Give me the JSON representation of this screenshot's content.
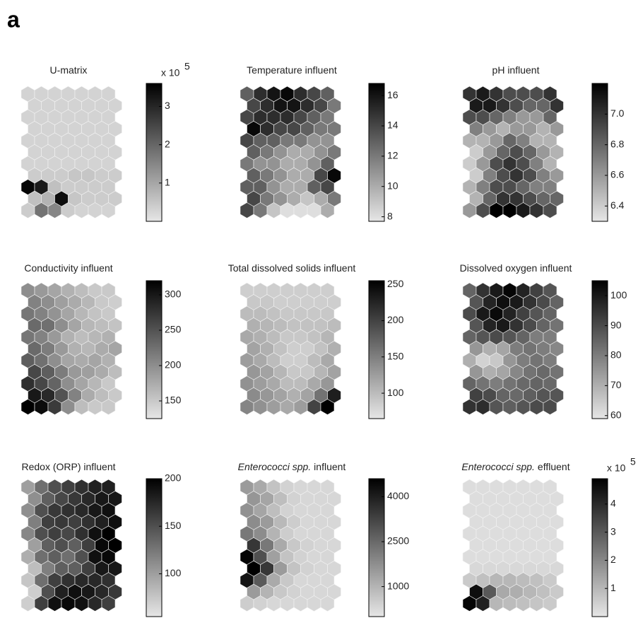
{
  "panel_label": "a",
  "colormap": [
    "#e6e6e6",
    "#000000"
  ],
  "chart_data": [
    {
      "type": "hexmap",
      "title": "U-matrix",
      "scale_base": "x 10",
      "scale_exponent": 5,
      "colorbar_lim": [
        0,
        3.6
      ],
      "colorbar_ticks": [
        1,
        2,
        3
      ],
      "values": [
        [
          0.3,
          0.3,
          0.3,
          0.3,
          0.3,
          0.3,
          0.3
        ],
        [
          0.3,
          0.3,
          0.3,
          0.3,
          0.3,
          0.3,
          0.3
        ],
        [
          0.3,
          0.3,
          0.3,
          0.3,
          0.3,
          0.3,
          0.3
        ],
        [
          0.3,
          0.3,
          0.3,
          0.3,
          0.3,
          0.3,
          0.3
        ],
        [
          0.3,
          0.3,
          0.3,
          0.3,
          0.3,
          0.3,
          0.3
        ],
        [
          0.3,
          0.3,
          0.3,
          0.3,
          0.3,
          0.3,
          0.3
        ],
        [
          0.3,
          0.3,
          0.3,
          0.3,
          0.3,
          0.3,
          0.3
        ],
        [
          0.4,
          0.4,
          0.4,
          0.5,
          0.5,
          0.4,
          0.4
        ],
        [
          3.5,
          3.2,
          0.6,
          0.4,
          0.4,
          0.4,
          0.4
        ],
        [
          0.6,
          0.8,
          3.4,
          0.5,
          0.4,
          0.4,
          0.4
        ],
        [
          0.4,
          1.8,
          1.5,
          0.4,
          0.3,
          0.3,
          0.3
        ]
      ]
    },
    {
      "type": "hexmap",
      "title": "Temperature influent",
      "colorbar_lim": [
        7.7,
        16.8
      ],
      "colorbar_ticks": [
        8,
        10,
        12,
        14,
        16
      ],
      "values": [
        [
          13,
          15,
          16,
          16.5,
          15,
          14,
          13
        ],
        [
          14,
          15,
          16,
          16,
          15,
          14,
          12
        ],
        [
          14,
          15,
          15,
          15,
          14,
          13,
          12
        ],
        [
          16.5,
          15,
          14,
          14,
          13,
          12,
          12
        ],
        [
          14,
          13,
          13,
          12,
          12,
          11,
          11
        ],
        [
          13,
          12,
          11,
          10,
          10,
          11,
          12
        ],
        [
          12,
          11,
          11,
          10,
          10,
          11,
          13
        ],
        [
          13,
          12,
          11,
          10,
          10,
          14,
          16.5
        ],
        [
          13,
          13,
          11,
          10,
          10,
          13,
          14
        ],
        [
          14,
          12,
          11,
          10,
          9,
          10,
          12
        ],
        [
          14,
          12,
          9,
          8,
          8,
          8,
          10
        ]
      ]
    },
    {
      "type": "hexmap",
      "title": "pH influent",
      "colorbar_lim": [
        6.3,
        7.2
      ],
      "colorbar_ticks": [
        6.4,
        6.6,
        6.8,
        {
          "value": 7,
          "label": "7.0"
        }
      ],
      "values": [
        [
          7.0,
          7.1,
          7.0,
          6.9,
          6.9,
          6.9,
          7.0
        ],
        [
          7.1,
          7.1,
          7.0,
          6.9,
          6.8,
          6.8,
          7.0
        ],
        [
          6.9,
          6.9,
          6.8,
          6.7,
          6.6,
          6.6,
          6.8
        ],
        [
          6.7,
          6.6,
          6.5,
          6.6,
          6.6,
          6.5,
          6.6
        ],
        [
          6.5,
          6.5,
          6.6,
          6.8,
          6.7,
          6.5,
          6.5
        ],
        [
          6.4,
          6.6,
          6.8,
          6.9,
          6.8,
          6.6,
          6.5
        ],
        [
          6.4,
          6.6,
          6.9,
          7.0,
          6.9,
          6.7,
          6.5
        ],
        [
          6.4,
          6.7,
          6.9,
          7.0,
          6.9,
          6.7,
          6.6
        ],
        [
          6.5,
          6.7,
          6.9,
          6.9,
          6.8,
          6.7,
          6.7
        ],
        [
          6.5,
          6.8,
          7.0,
          7.0,
          6.9,
          6.8,
          6.8
        ],
        [
          6.6,
          6.9,
          7.2,
          7.2,
          7.1,
          7.0,
          6.9
        ]
      ]
    },
    {
      "type": "hexmap",
      "title": "Conductivity influent",
      "colorbar_lim": [
        125,
        320
      ],
      "colorbar_ticks": [
        150,
        200,
        250,
        300
      ],
      "values": [
        [
          200,
          190,
          180,
          170,
          160,
          150,
          150
        ],
        [
          210,
          200,
          185,
          175,
          165,
          150,
          145
        ],
        [
          220,
          210,
          195,
          180,
          165,
          155,
          150
        ],
        [
          230,
          225,
          200,
          180,
          165,
          160,
          155
        ],
        [
          220,
          210,
          190,
          170,
          160,
          165,
          170
        ],
        [
          230,
          215,
          190,
          170,
          165,
          175,
          180
        ],
        [
          240,
          225,
          200,
          180,
          175,
          180,
          170
        ],
        [
          260,
          240,
          215,
          190,
          185,
          175,
          160
        ],
        [
          280,
          260,
          235,
          200,
          180,
          165,
          150
        ],
        [
          300,
          285,
          250,
          210,
          175,
          160,
          150
        ],
        [
          320,
          310,
          270,
          200,
          160,
          150,
          150
        ]
      ]
    },
    {
      "type": "hexmap",
      "title": "Total dissolved solids influent",
      "colorbar_lim": [
        65,
        255
      ],
      "colorbar_ticks": [
        100,
        150,
        200,
        250
      ],
      "values": [
        [
          85,
          85,
          85,
          85,
          85,
          85,
          85
        ],
        [
          90,
          90,
          85,
          85,
          85,
          85,
          85
        ],
        [
          100,
          100,
          95,
          90,
          90,
          90,
          90
        ],
        [
          110,
          105,
          100,
          95,
          95,
          95,
          100
        ],
        [
          115,
          110,
          100,
          90,
          90,
          95,
          105
        ],
        [
          120,
          110,
          95,
          85,
          85,
          95,
          110
        ],
        [
          125,
          115,
          100,
          85,
          85,
          100,
          115
        ],
        [
          130,
          120,
          105,
          90,
          90,
          105,
          120
        ],
        [
          135,
          125,
          115,
          100,
          100,
          115,
          130
        ],
        [
          140,
          130,
          120,
          110,
          120,
          160,
          230
        ],
        [
          145,
          135,
          125,
          115,
          125,
          200,
          255
        ]
      ]
    },
    {
      "type": "hexmap",
      "title": "Dissolved oxygen influent",
      "colorbar_lim": [
        59,
        105
      ],
      "colorbar_ticks": [
        60,
        70,
        80,
        90,
        100
      ],
      "values": [
        [
          85,
          95,
          100,
          104,
          98,
          92,
          88
        ],
        [
          88,
          98,
          102,
          100,
          95,
          90,
          85
        ],
        [
          90,
          100,
          103,
          98,
          92,
          88,
          85
        ],
        [
          88,
          98,
          100,
          95,
          90,
          85,
          82
        ],
        [
          85,
          88,
          90,
          88,
          85,
          80,
          80
        ],
        [
          75,
          70,
          72,
          80,
          82,
          80,
          78
        ],
        [
          70,
          63,
          65,
          75,
          80,
          82,
          80
        ],
        [
          75,
          70,
          72,
          78,
          82,
          84,
          82
        ],
        [
          85,
          82,
          80,
          82,
          84,
          85,
          84
        ],
        [
          92,
          90,
          85,
          84,
          86,
          88,
          88
        ],
        [
          95,
          96,
          88,
          86,
          88,
          90,
          90
        ]
      ]
    },
    {
      "type": "hexmap",
      "title": "Redox (ORP) influent",
      "colorbar_lim": [
        55,
        200
      ],
      "colorbar_ticks": [
        100,
        150,
        200
      ],
      "values": [
        [
          100,
          130,
          150,
          160,
          170,
          180,
          180
        ],
        [
          110,
          140,
          155,
          165,
          175,
          185,
          185
        ],
        [
          110,
          150,
          165,
          170,
          175,
          185,
          190
        ],
        [
          120,
          160,
          165,
          160,
          170,
          180,
          190
        ],
        [
          115,
          150,
          160,
          155,
          170,
          190,
          200
        ],
        [
          100,
          140,
          150,
          140,
          160,
          195,
          200
        ],
        [
          90,
          130,
          140,
          130,
          150,
          190,
          195
        ],
        [
          80,
          120,
          140,
          140,
          160,
          185,
          185
        ],
        [
          75,
          130,
          160,
          170,
          175,
          175,
          170
        ],
        [
          70,
          150,
          180,
          190,
          185,
          175,
          165
        ],
        [
          70,
          160,
          190,
          195,
          190,
          175,
          160
        ]
      ]
    },
    {
      "type": "hexmap",
      "title_italic": "Enterococci spp.",
      "title": "influent",
      "colorbar_lim": [
        0,
        4600
      ],
      "colorbar_ticks": [
        1000,
        2500,
        4000
      ],
      "values": [
        [
          1500,
          1200,
          700,
          400,
          300,
          300,
          300
        ],
        [
          1600,
          1300,
          800,
          400,
          300,
          300,
          300
        ],
        [
          1700,
          1300,
          800,
          400,
          300,
          300,
          300
        ],
        [
          1800,
          1500,
          900,
          500,
          300,
          300,
          300
        ],
        [
          2200,
          1800,
          1000,
          500,
          300,
          300,
          300
        ],
        [
          3500,
          2200,
          1200,
          600,
          400,
          300,
          300
        ],
        [
          4500,
          3000,
          1400,
          700,
          400,
          300,
          300
        ],
        [
          4600,
          3500,
          1500,
          700,
          400,
          300,
          300
        ],
        [
          4200,
          2800,
          1200,
          600,
          300,
          300,
          300
        ],
        [
          1500,
          1000,
          600,
          400,
          300,
          300,
          300
        ],
        [
          500,
          400,
          300,
          300,
          300,
          300,
          300
        ]
      ]
    },
    {
      "type": "hexmap",
      "title_italic": "Enterococci spp.",
      "title": "effluent",
      "scale_base": "x 10",
      "scale_exponent": 5,
      "colorbar_lim": [
        0,
        4.9
      ],
      "colorbar_ticks": [
        1,
        2,
        3,
        4
      ],
      "values": [
        [
          0.2,
          0.2,
          0.2,
          0.2,
          0.2,
          0.2,
          0.2
        ],
        [
          0.2,
          0.2,
          0.2,
          0.2,
          0.2,
          0.2,
          0.2
        ],
        [
          0.2,
          0.2,
          0.2,
          0.2,
          0.2,
          0.2,
          0.2
        ],
        [
          0.2,
          0.2,
          0.2,
          0.2,
          0.2,
          0.2,
          0.2
        ],
        [
          0.2,
          0.2,
          0.2,
          0.2,
          0.2,
          0.2,
          0.2
        ],
        [
          0.2,
          0.2,
          0.2,
          0.2,
          0.2,
          0.2,
          0.2
        ],
        [
          0.2,
          0.2,
          0.2,
          0.2,
          0.2,
          0.2,
          0.2
        ],
        [
          0.3,
          0.3,
          0.3,
          0.3,
          0.3,
          0.3,
          0.3
        ],
        [
          0.6,
          0.8,
          1.0,
          1.0,
          0.9,
          0.8,
          0.6
        ],
        [
          4.6,
          3.0,
          1.3,
          1.2,
          1.0,
          0.8,
          0.6
        ],
        [
          4.8,
          4.2,
          1.0,
          0.9,
          0.8,
          0.7,
          0.6
        ]
      ]
    }
  ]
}
